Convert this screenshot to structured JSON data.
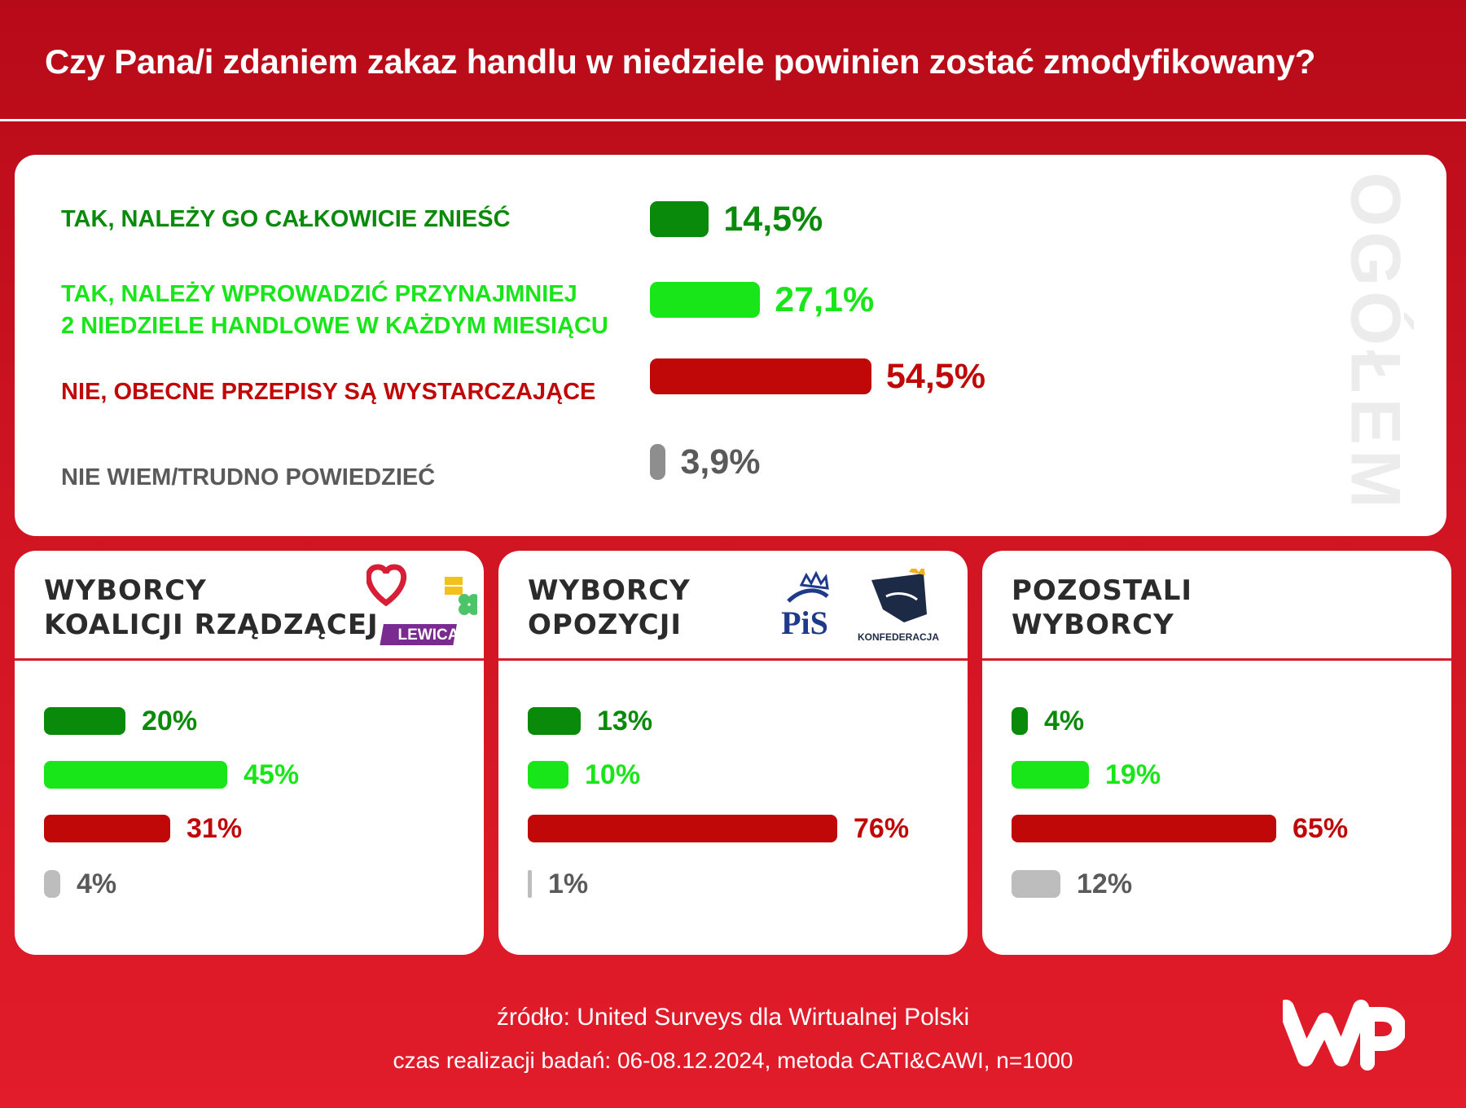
{
  "title": "Czy Pana/i zdaniem zakaz handlu w niedziele powinien zostać zmodyfikowany?",
  "colors": {
    "dark_green": "#0a8a0a",
    "light_green": "#19e619",
    "red": "#c00808",
    "gray": "#9a9a9a",
    "gray_light_bar": "#bdbdbd"
  },
  "overall": {
    "side_label": "OGÓŁEM",
    "labels": [
      "TAK, NALEŻY GO CAŁKOWICIE ZNIEŚĆ",
      "TAK, NALEŻY WPROWADZIĆ PRZYNAJMNIEJ\n2 NIEDZIELE HANDLOWE W KAŻDYM MIESIĄCU",
      "NIE, OBECNE PRZEPISY SĄ WYSTARCZAJĄCE",
      "NIE WIEM/TRUDNO POWIEDZIEĆ"
    ],
    "values_text": [
      "14,5%",
      "27,1%",
      "54,5%",
      "3,9%"
    ]
  },
  "groups": [
    {
      "title": "WYBORCY\nKOALICJI RZĄDZĄCEJ",
      "logos": [
        "heart-logo",
        "2050-logo",
        "clover-logo",
        "LEWICA"
      ],
      "values_text": [
        "20%",
        "45%",
        "31%",
        "4%"
      ]
    },
    {
      "title": "WYBORCY\nOPOZYCJI",
      "logos": [
        "PiS",
        "KONFEDERACJA"
      ],
      "values_text": [
        "13%",
        "10%",
        "76%",
        "1%"
      ]
    },
    {
      "title": "POZOSTALI\nWYBORCY",
      "logos": [],
      "values_text": [
        "4%",
        "19%",
        "65%",
        "12%"
      ]
    }
  ],
  "chart_data": [
    {
      "type": "bar",
      "title": "OGÓŁEM",
      "categories": [
        "TAK, NALEŻY GO CAŁKOWICIE ZNIEŚĆ",
        "TAK, NALEŻY WPROWADZIĆ PRZYNAJMNIEJ 2 NIEDZIELE HANDLOWE W KAŻDYM MIESIĄCU",
        "NIE, OBECNE PRZEPISY SĄ WYSTARCZAJĄCE",
        "NIE WIEM/TRUDNO POWIEDZIEĆ"
      ],
      "values": [
        14.5,
        27.1,
        54.5,
        3.9
      ],
      "orientation": "horizontal",
      "unit": "%"
    },
    {
      "type": "bar",
      "title": "WYBORCY KOALICJI RZĄDZĄCEJ",
      "categories": [
        "TAK, NALEŻY GO CAŁKOWICIE ZNIEŚĆ",
        "TAK, NALEŻY WPROWADZIĆ PRZYNAJMNIEJ 2 NIEDZIELE HANDLOWE W KAŻDYM MIESIĄCU",
        "NIE, OBECNE PRZEPISY SĄ WYSTARCZAJĄCE",
        "NIE WIEM/TRUDNO POWIEDZIEĆ"
      ],
      "values": [
        20,
        45,
        31,
        4
      ],
      "orientation": "horizontal",
      "unit": "%"
    },
    {
      "type": "bar",
      "title": "WYBORCY OPOZYCJI",
      "categories": [
        "TAK, NALEŻY GO CAŁKOWICIE ZNIEŚĆ",
        "TAK, NALEŻY WPROWADZIĆ PRZYNAJMNIEJ 2 NIEDZIELE HANDLOWE W KAŻDYM MIESIĄCU",
        "NIE, OBECNE PRZEPISY SĄ WYSTARCZAJĄCE",
        "NIE WIEM/TRUDNO POWIEDZIEĆ"
      ],
      "values": [
        13,
        10,
        76,
        1
      ],
      "orientation": "horizontal",
      "unit": "%"
    },
    {
      "type": "bar",
      "title": "POZOSTALI WYBORCY",
      "categories": [
        "TAK, NALEŻY GO CAŁKOWICIE ZNIEŚĆ",
        "TAK, NALEŻY WPROWADZIĆ PRZYNAJMNIEJ 2 NIEDZIELE HANDLOWE W KAŻDYM MIESIĄCU",
        "NIE, OBECNE PRZEPISY SĄ WYSTARCZAJĄCE",
        "NIE WIEM/TRUDNO POWIEDZIEĆ"
      ],
      "values": [
        4,
        19,
        65,
        12
      ],
      "orientation": "horizontal",
      "unit": "%"
    }
  ],
  "footer": {
    "source": "źródło: United Surveys dla Wirtualnej Polski",
    "method": "czas realizacji badań: 06-08.12.2024, metoda CATI&CAWI, n=1000"
  },
  "brand": "WP"
}
